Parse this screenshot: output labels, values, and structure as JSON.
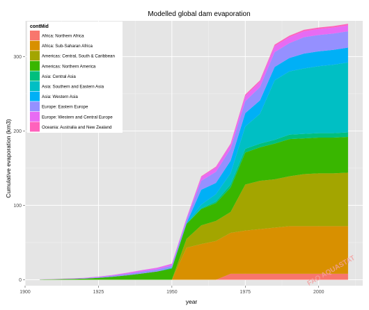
{
  "chart_data": {
    "type": "area",
    "stacked": true,
    "title": "Modelled global dam evaporation",
    "xlabel": "year",
    "ylabel": "Cumulative evaporation (km3)",
    "xlim": [
      1900,
      2015
    ],
    "ylim": [
      -8,
      348
    ],
    "x_ticks": [
      1900,
      1925,
      1950,
      1975,
      2000
    ],
    "y_ticks": [
      0,
      100,
      200,
      300
    ],
    "grid": true,
    "background": "#e5e5e5",
    "legend": {
      "title": "contMid",
      "position": "top-left"
    },
    "watermark": "FAO AQUASTAT",
    "x": [
      1905,
      1910,
      1915,
      1920,
      1925,
      1930,
      1935,
      1940,
      1945,
      1950,
      1955,
      1960,
      1965,
      1970,
      1975,
      1980,
      1985,
      1990,
      1995,
      2000,
      2005,
      2010
    ],
    "series": [
      {
        "name": "Africa: Northern Africa",
        "color": "#F8766D",
        "values": [
          0,
          0,
          0,
          0,
          0,
          0,
          0,
          0,
          0,
          0,
          0,
          0,
          0,
          8,
          8,
          8,
          8,
          8,
          8,
          8,
          8,
          8
        ]
      },
      {
        "name": "Africa: Sub-Saharan Africa",
        "color": "#D89000",
        "values": [
          0,
          0,
          0,
          0,
          0,
          0,
          0,
          0,
          0,
          0,
          43,
          48,
          52,
          55,
          58,
          60,
          62,
          64,
          64,
          64,
          64,
          64
        ]
      },
      {
        "name": "Americas: Central, South & Caribbean",
        "color": "#A3A500",
        "values": [
          0,
          0,
          0,
          0,
          0,
          0,
          0,
          0,
          0,
          0,
          12,
          25,
          27,
          28,
          62,
          65,
          65,
          67,
          70,
          71,
          71,
          72
        ]
      },
      {
        "name": "Americas: Northern America",
        "color": "#39B600",
        "values": [
          0.3,
          0.6,
          1,
          1.5,
          2.5,
          4,
          6,
          8.5,
          11,
          15,
          20,
          22,
          24,
          33,
          43,
          45,
          48,
          50,
          48,
          48,
          48,
          48
        ]
      },
      {
        "name": "Asia: Central Asia",
        "color": "#00BF7D",
        "values": [
          0,
          0,
          0,
          0,
          0,
          0,
          0,
          0,
          0,
          0,
          0,
          1,
          2,
          4,
          5,
          5,
          5,
          6,
          6,
          6,
          6,
          6
        ]
      },
      {
        "name": "Asia: Southern and Eastern Asia",
        "color": "#00BFC4",
        "values": [
          0,
          0,
          0,
          0,
          0,
          0,
          0,
          0,
          0,
          1,
          1,
          5,
          10,
          15,
          30,
          40,
          80,
          85,
          88,
          90,
          92,
          94
        ]
      },
      {
        "name": "Asia: Western Asia",
        "color": "#00B0F6",
        "values": [
          0,
          0,
          0,
          0,
          0,
          0,
          0,
          0,
          0,
          0,
          0,
          20,
          15,
          17,
          18,
          18,
          18,
          18,
          20,
          20,
          20,
          20
        ]
      },
      {
        "name": "Europe: Eastern Europe",
        "color": "#9590FF",
        "values": [
          0.1,
          0.2,
          0.4,
          0.6,
          1,
          1.5,
          2,
          2.5,
          3,
          3,
          4,
          12,
          15,
          16,
          16,
          18,
          20,
          20,
          22,
          22,
          22,
          22
        ]
      },
      {
        "name": "Europe: Western and Central Europe",
        "color": "#E76BF3",
        "values": [
          0.1,
          0.2,
          0.3,
          0.4,
          0.7,
          1,
          1.5,
          2,
          2.2,
          2.5,
          3,
          5,
          6,
          6,
          7,
          7,
          8,
          8,
          8,
          8,
          8,
          8
        ]
      },
      {
        "name": "Oceania: Australia and New Zealand",
        "color": "#FF62BC",
        "values": [
          0,
          0,
          0,
          0,
          0,
          0,
          0,
          0,
          0,
          0,
          0,
          1,
          1,
          1,
          2,
          2,
          2,
          2,
          2,
          2,
          2,
          2
        ]
      }
    ]
  }
}
